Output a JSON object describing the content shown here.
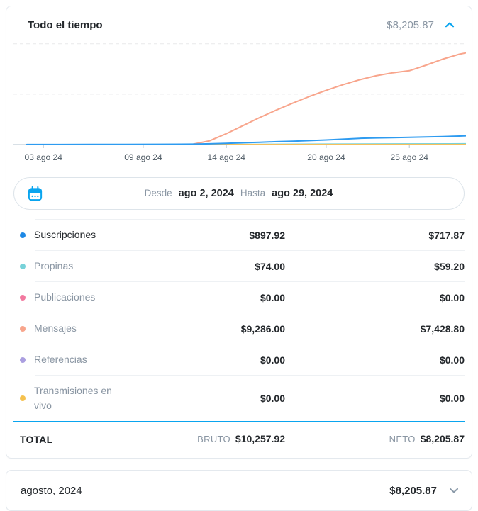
{
  "accent": "#0aa5ef",
  "header": {
    "title": "Todo el tiempo",
    "amount": "$8,205.87",
    "collapse_icon": "chevron-up-icon"
  },
  "chart_data": {
    "type": "line",
    "title": "Todo el tiempo - ganancias acumuladas",
    "x_unit": "day of August 2024",
    "x_range": [
      1.2,
      28.4
    ],
    "ylim": [
      0,
      10400
    ],
    "gridlines": [
      5000,
      10000
    ],
    "grid": "dashed-horizontal",
    "legend_position": "table-below",
    "x_ticks": [
      {
        "day": 3,
        "label": "03 ago 24"
      },
      {
        "day": 9,
        "label": "09 ago 24"
      },
      {
        "day": 14,
        "label": "14 ago 24"
      },
      {
        "day": 20,
        "label": "20 ago 24"
      },
      {
        "day": 25,
        "label": "25 ago 24"
      }
    ],
    "series": [
      {
        "name": "Suscripciones",
        "color": "#2e9bf0",
        "points": [
          [
            2,
            5
          ],
          [
            4,
            8
          ],
          [
            6,
            12
          ],
          [
            8,
            18
          ],
          [
            10,
            25
          ],
          [
            12,
            45
          ],
          [
            13,
            80
          ],
          [
            14,
            130
          ],
          [
            15,
            180
          ],
          [
            16,
            230
          ],
          [
            17,
            285
          ],
          [
            18,
            335
          ],
          [
            19,
            395
          ],
          [
            20,
            455
          ],
          [
            21,
            535
          ],
          [
            22,
            615
          ],
          [
            23,
            660
          ],
          [
            24,
            690
          ],
          [
            25,
            715
          ],
          [
            26,
            755
          ],
          [
            27,
            795
          ],
          [
            28,
            845
          ],
          [
            29,
            898
          ]
        ]
      },
      {
        "name": "Propinas",
        "color": "#78d2d9",
        "points": [
          [
            2,
            0
          ],
          [
            12,
            8
          ],
          [
            16,
            22
          ],
          [
            20,
            42
          ],
          [
            24,
            60
          ],
          [
            29,
            74
          ]
        ]
      },
      {
        "name": "Publicaciones",
        "color": "#f48fb1",
        "points": [
          [
            2,
            0
          ],
          [
            29,
            0
          ]
        ]
      },
      {
        "name": "Mensajes",
        "color": "#f8a58c",
        "points": [
          [
            2,
            0
          ],
          [
            11,
            0
          ],
          [
            12,
            40
          ],
          [
            13,
            380
          ],
          [
            14,
            1080
          ],
          [
            15,
            1880
          ],
          [
            16,
            2680
          ],
          [
            17,
            3420
          ],
          [
            18,
            4120
          ],
          [
            19,
            4780
          ],
          [
            20,
            5380
          ],
          [
            21,
            5930
          ],
          [
            22,
            6420
          ],
          [
            23,
            6820
          ],
          [
            24,
            7120
          ],
          [
            25,
            7320
          ],
          [
            26,
            7870
          ],
          [
            27,
            8470
          ],
          [
            28,
            8960
          ],
          [
            29,
            9286
          ]
        ]
      },
      {
        "name": "Referencias",
        "color": "#b0a6e3",
        "points": [
          [
            2,
            0
          ],
          [
            29,
            0
          ]
        ]
      },
      {
        "name": "Transmisiones en vivo",
        "color": "#f6c05b",
        "points": [
          [
            2,
            0
          ],
          [
            29,
            0
          ]
        ]
      }
    ]
  },
  "date_range": {
    "icon": "calendar-icon",
    "from_label": "Desde",
    "from_value": "ago 2, 2024",
    "to_label": "Hasta",
    "to_value": "ago 29, 2024"
  },
  "table": {
    "rows": [
      {
        "label": "Suscripciones",
        "color": "#1e88e5",
        "gross": "$897.92",
        "net": "$717.87",
        "active": true
      },
      {
        "label": "Propinas",
        "color": "#78d2d9",
        "gross": "$74.00",
        "net": "$59.20",
        "active": false
      },
      {
        "label": "Publicaciones",
        "color": "#f2799f",
        "gross": "$0.00",
        "net": "$0.00",
        "active": false
      },
      {
        "label": "Mensajes",
        "color": "#f8a58c",
        "gross": "$9,286.00",
        "net": "$7,428.80",
        "active": false
      },
      {
        "label": "Referencias",
        "color": "#ab9fe0",
        "gross": "$0.00",
        "net": "$0.00",
        "active": false
      },
      {
        "label": "Transmisiones en vivo",
        "color": "#f5c14e",
        "gross": "$0.00",
        "net": "$0.00",
        "active": false
      }
    ],
    "total": {
      "label": "TOTAL",
      "gross_label": "BRUTO",
      "gross": "$10,257.92",
      "net_label": "NETO",
      "net": "$8,205.87"
    }
  },
  "footer_card": {
    "label": "agosto, 2024",
    "amount": "$8,205.87",
    "expand_icon": "chevron-down-icon"
  }
}
